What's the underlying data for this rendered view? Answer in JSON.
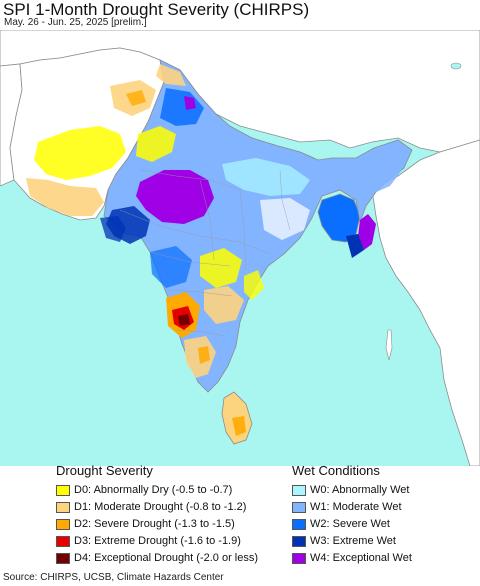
{
  "title": "SPI 1-Month Drought Severity (CHIRPS)",
  "subtitle": "May. 26 - Jun. 25, 2025 [prelim.]",
  "legend": {
    "drought_heading": "Drought Severity",
    "wet_heading": "Wet Conditions",
    "drought": [
      {
        "label": "D0: Abnormally Dry (-0.5 to -0.7)",
        "color": "#ffff00"
      },
      {
        "label": "D1: Moderate Drought (-0.8 to -1.2)",
        "color": "#fcd37f"
      },
      {
        "label": "D2: Severe Drought (-1.3 to -1.5)",
        "color": "#ffaa00"
      },
      {
        "label": "D3: Extreme Drought (-1.6 to -1.9)",
        "color": "#e60000"
      },
      {
        "label": "D4: Exceptional Drought (-2.0 or less)",
        "color": "#730000"
      }
    ],
    "wet": [
      {
        "label": "W0: Abnormally Wet",
        "color": "#aaf5ff"
      },
      {
        "label": "W1: Moderate Wet",
        "color": "#82b4ff"
      },
      {
        "label": "W2: Severe Wet",
        "color": "#0a6eff"
      },
      {
        "label": "W3: Extreme Wet",
        "color": "#0032b4"
      },
      {
        "label": "W4: Exceptional Wet",
        "color": "#a000e6"
      }
    ]
  },
  "source": "Source: CHIRPS, UCSB, Climate Hazards Center",
  "map_colors": {
    "ocean": "#a8f6ef",
    "outside_land": "#ffffff",
    "normal_land": "#ffffff",
    "borders": "#8c8c8c"
  }
}
